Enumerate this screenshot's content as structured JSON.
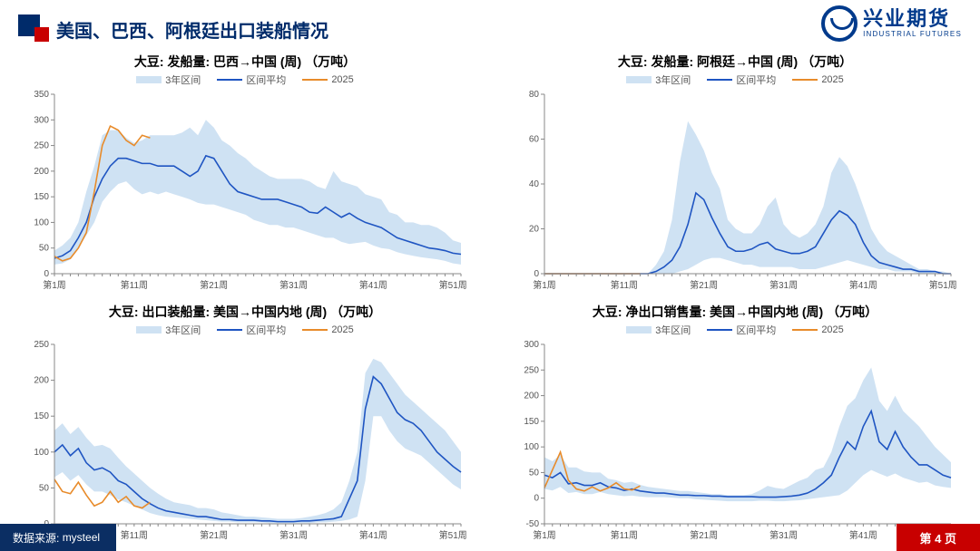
{
  "header": {
    "title": "美国、巴西、阿根廷出口装船情况",
    "brand_cn": "兴业期货",
    "brand_en": "INDUSTRIAL FUTURES"
  },
  "footer": {
    "source_label": "数据来源:",
    "source_value": "mysteel",
    "page_label": "第 4 页"
  },
  "colors": {
    "band": "#cfe2f3",
    "mean": "#1f55c2",
    "s2025": "#e88b2a",
    "axis": "#888888",
    "title": "#000000"
  },
  "legend": {
    "band": "3年区间",
    "mean": "区间平均",
    "s2025": "2025"
  },
  "x_categories": [
    "第1周",
    "第11周",
    "第21周",
    "第31周",
    "第41周",
    "第51周"
  ],
  "charts": [
    {
      "id": "tl",
      "title": "大豆: 发船量: 巴西→中国 (周) （万吨）",
      "y_min": 0,
      "y_max": 350,
      "y_step": 50,
      "mean": [
        30,
        35,
        45,
        70,
        100,
        150,
        185,
        210,
        225,
        225,
        220,
        215,
        215,
        210,
        210,
        210,
        200,
        190,
        200,
        230,
        225,
        200,
        175,
        160,
        155,
        150,
        145,
        145,
        145,
        140,
        135,
        130,
        120,
        118,
        130,
        120,
        110,
        118,
        108,
        100,
        95,
        90,
        80,
        70,
        65,
        60,
        55,
        50,
        48,
        45,
        40,
        38
      ],
      "upper": [
        45,
        55,
        70,
        100,
        160,
        210,
        270,
        280,
        280,
        265,
        255,
        260,
        270,
        270,
        270,
        270,
        275,
        285,
        270,
        300,
        285,
        260,
        250,
        235,
        225,
        210,
        200,
        190,
        185,
        185,
        185,
        185,
        180,
        170,
        165,
        200,
        180,
        175,
        170,
        155,
        150,
        145,
        120,
        115,
        100,
        100,
        95,
        95,
        90,
        80,
        65,
        60
      ],
      "lower": [
        18,
        20,
        28,
        50,
        75,
        100,
        140,
        160,
        175,
        180,
        165,
        155,
        160,
        155,
        160,
        155,
        150,
        145,
        138,
        135,
        135,
        130,
        125,
        120,
        115,
        105,
        100,
        95,
        95,
        90,
        90,
        85,
        80,
        75,
        70,
        70,
        62,
        58,
        60,
        62,
        55,
        50,
        48,
        42,
        38,
        35,
        32,
        30,
        28,
        25,
        20,
        18
      ],
      "s2025": [
        34,
        25,
        30,
        50,
        80,
        160,
        250,
        288,
        280,
        260,
        250,
        270,
        265
      ]
    },
    {
      "id": "tr",
      "title": "大豆: 发船量: 阿根廷→中国 (周) （万吨）",
      "y_min": 0,
      "y_max": 80,
      "y_step": 20,
      "mean": [
        0,
        0,
        0,
        0,
        0,
        0,
        0,
        0,
        0,
        0,
        0,
        0,
        0,
        0,
        1,
        3,
        6,
        12,
        22,
        36,
        33,
        25,
        18,
        12,
        10,
        10,
        11,
        13,
        14,
        11,
        10,
        9,
        9,
        10,
        12,
        18,
        24,
        28,
        26,
        22,
        14,
        8,
        5,
        4,
        3,
        2,
        2,
        1,
        1,
        1,
        0,
        0
      ],
      "upper": [
        0,
        0,
        0,
        0,
        0,
        0,
        0,
        0,
        0,
        0,
        0,
        0,
        0,
        0,
        4,
        10,
        24,
        50,
        68,
        62,
        55,
        45,
        38,
        24,
        20,
        18,
        18,
        22,
        30,
        34,
        22,
        18,
        16,
        18,
        22,
        30,
        45,
        52,
        48,
        40,
        30,
        20,
        14,
        10,
        8,
        6,
        4,
        2,
        2,
        1,
        1,
        0
      ],
      "lower": [
        0,
        0,
        0,
        0,
        0,
        0,
        0,
        0,
        0,
        0,
        0,
        0,
        0,
        0,
        0,
        0,
        0,
        1,
        2,
        4,
        6,
        7,
        7,
        6,
        5,
        4,
        4,
        3,
        3,
        3,
        3,
        3,
        2,
        2,
        2,
        3,
        4,
        5,
        6,
        5,
        4,
        3,
        2,
        2,
        1,
        1,
        1,
        0,
        0,
        0,
        0,
        0
      ],
      "s2025": [
        0,
        0,
        0,
        0,
        0,
        0,
        0,
        0,
        0,
        0,
        0,
        0,
        0
      ]
    },
    {
      "id": "bl",
      "title": "大豆: 出口装船量: 美国→中国内地 (周) （万吨）",
      "y_min": 0,
      "y_max": 250,
      "y_step": 50,
      "mean": [
        100,
        110,
        95,
        105,
        85,
        75,
        78,
        72,
        60,
        55,
        45,
        35,
        28,
        22,
        18,
        16,
        14,
        12,
        10,
        10,
        8,
        6,
        6,
        5,
        5,
        5,
        4,
        4,
        3,
        3,
        3,
        4,
        4,
        5,
        6,
        7,
        10,
        35,
        60,
        160,
        205,
        195,
        175,
        155,
        145,
        140,
        130,
        115,
        100,
        90,
        80,
        72
      ],
      "upper": [
        130,
        140,
        125,
        135,
        120,
        108,
        110,
        105,
        92,
        80,
        70,
        60,
        50,
        42,
        35,
        30,
        28,
        26,
        22,
        22,
        20,
        16,
        14,
        12,
        10,
        10,
        9,
        8,
        7,
        7,
        7,
        8,
        10,
        12,
        15,
        20,
        30,
        60,
        100,
        210,
        230,
        225,
        210,
        195,
        180,
        170,
        160,
        150,
        140,
        130,
        115,
        100
      ],
      "lower": [
        65,
        72,
        60,
        68,
        55,
        45,
        45,
        40,
        34,
        30,
        25,
        20,
        15,
        12,
        10,
        9,
        8,
        7,
        6,
        5,
        4,
        3,
        3,
        2,
        2,
        2,
        2,
        1,
        1,
        1,
        1,
        1,
        1,
        2,
        2,
        3,
        4,
        6,
        10,
        60,
        150,
        150,
        130,
        115,
        105,
        100,
        95,
        85,
        75,
        65,
        55,
        48
      ],
      "s2025": [
        62,
        45,
        42,
        58,
        40,
        25,
        30,
        45,
        30,
        38,
        25,
        22,
        30
      ]
    },
    {
      "id": "br",
      "title": "大豆: 净出口销售量: 美国→中国内地 (周) （万吨）",
      "y_min": -50,
      "y_max": 300,
      "y_step": 50,
      "mean": [
        45,
        40,
        50,
        28,
        30,
        25,
        25,
        30,
        22,
        20,
        15,
        18,
        14,
        12,
        10,
        10,
        8,
        6,
        6,
        5,
        5,
        4,
        4,
        3,
        3,
        3,
        3,
        2,
        2,
        2,
        3,
        4,
        6,
        10,
        18,
        30,
        45,
        80,
        110,
        95,
        140,
        170,
        110,
        95,
        130,
        100,
        80,
        65,
        65,
        55,
        45,
        40
      ],
      "upper": [
        80,
        72,
        85,
        60,
        60,
        52,
        50,
        50,
        38,
        35,
        30,
        32,
        26,
        22,
        20,
        18,
        16,
        14,
        14,
        12,
        10,
        8,
        8,
        6,
        6,
        6,
        8,
        15,
        24,
        20,
        18,
        26,
        34,
        40,
        55,
        60,
        90,
        140,
        180,
        195,
        230,
        255,
        190,
        170,
        200,
        170,
        155,
        140,
        120,
        100,
        85,
        70
      ],
      "lower": [
        18,
        15,
        22,
        10,
        12,
        8,
        8,
        12,
        8,
        6,
        4,
        5,
        3,
        2,
        2,
        2,
        1,
        0,
        0,
        -2,
        -3,
        -4,
        -5,
        -6,
        -6,
        -6,
        -6,
        -5,
        -5,
        -6,
        -6,
        -5,
        -4,
        -2,
        0,
        2,
        4,
        6,
        15,
        30,
        45,
        55,
        48,
        42,
        48,
        40,
        35,
        30,
        32,
        25,
        22,
        20
      ],
      "s2025": [
        20,
        55,
        90,
        35,
        18,
        14,
        22,
        14,
        20,
        30,
        18,
        16,
        24
      ]
    }
  ]
}
